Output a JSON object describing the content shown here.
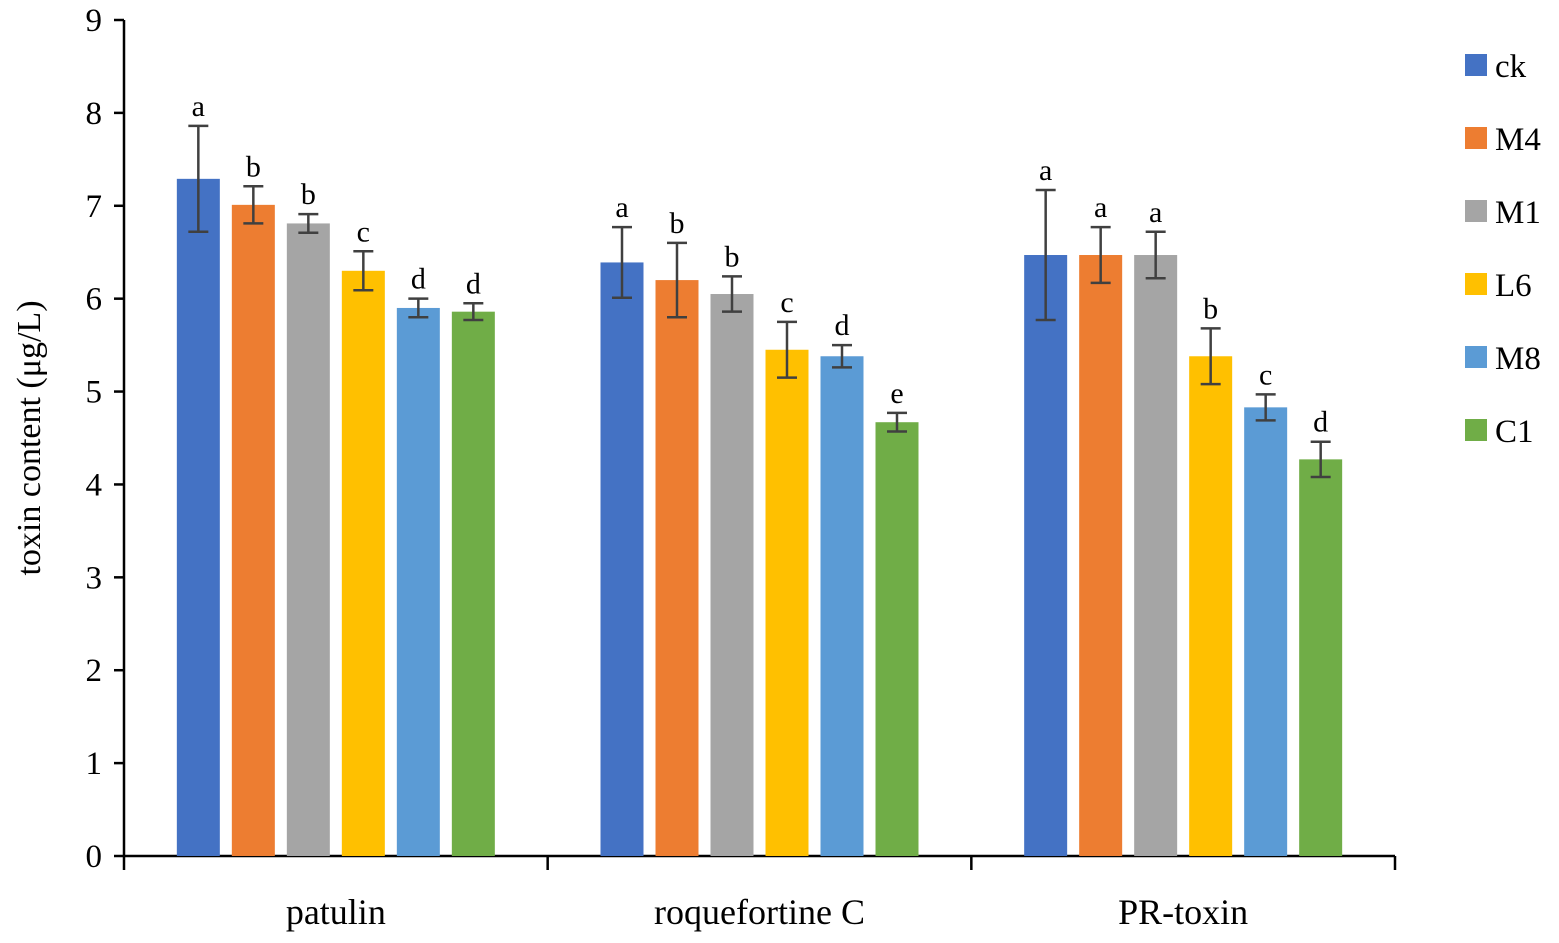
{
  "chart_data": {
    "type": "bar",
    "ylabel": "toxin content (μg/L)",
    "xlabel": "",
    "ylim": [
      0,
      9
    ],
    "yticks": [
      "0",
      "1",
      "2",
      "3",
      "4",
      "5",
      "6",
      "7",
      "8",
      "9"
    ],
    "grid": false,
    "legend_position": "right",
    "categories": [
      "patulin",
      "roquefortine C",
      "PR-toxin"
    ],
    "series": [
      {
        "name": "ck",
        "color": "#4472C4",
        "values": [
          7.29,
          6.39,
          6.47
        ],
        "errors": [
          0.57,
          0.38,
          0.7
        ],
        "letters": [
          "a",
          "a",
          "a"
        ]
      },
      {
        "name": "M4",
        "color": "#ED7D31",
        "values": [
          7.01,
          6.2,
          6.47
        ],
        "errors": [
          0.2,
          0.4,
          0.3
        ],
        "letters": [
          "b",
          "b",
          "a"
        ]
      },
      {
        "name": "M1",
        "color": "#A5A5A5",
        "values": [
          6.81,
          6.05,
          6.47
        ],
        "errors": [
          0.1,
          0.19,
          0.25
        ],
        "letters": [
          "b",
          "b",
          "a"
        ]
      },
      {
        "name": "L6",
        "color": "#FFC000",
        "values": [
          6.3,
          5.45,
          5.38
        ],
        "errors": [
          0.21,
          0.3,
          0.3
        ],
        "letters": [
          "c",
          "c",
          "b"
        ]
      },
      {
        "name": "M8",
        "color": "#5B9BD5",
        "values": [
          5.9,
          5.38,
          4.83
        ],
        "errors": [
          0.1,
          0.12,
          0.14
        ],
        "letters": [
          "d",
          "d",
          "c"
        ]
      },
      {
        "name": "C1",
        "color": "#70AD47",
        "values": [
          5.86,
          4.67,
          4.27
        ],
        "errors": [
          0.09,
          0.1,
          0.19
        ],
        "letters": [
          "d",
          "e",
          "d"
        ]
      }
    ]
  }
}
